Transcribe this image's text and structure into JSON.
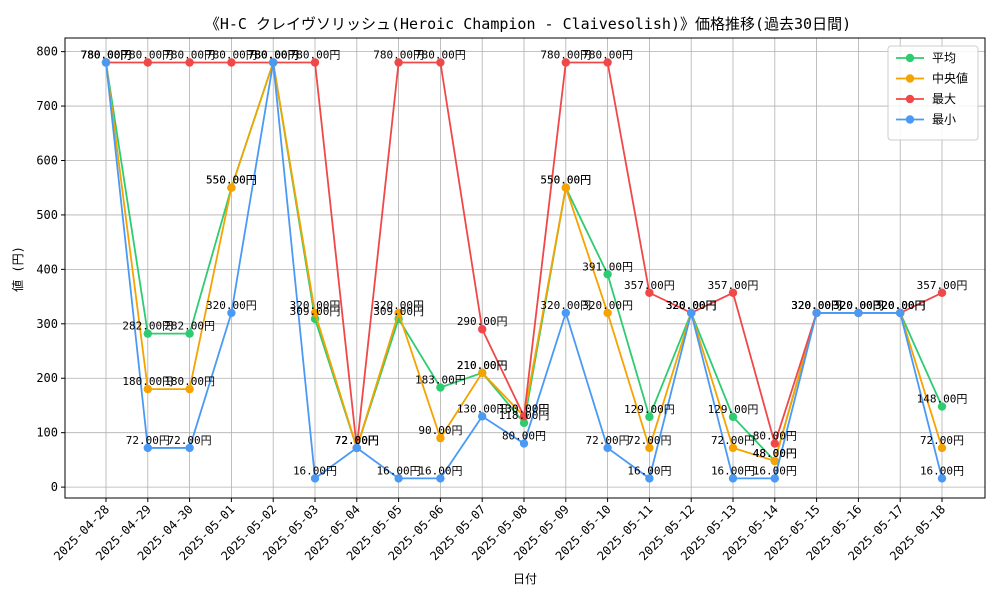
{
  "chart_data": {
    "type": "line",
    "title": "《H-C クレイヴソリッシュ(Heroic Champion - Claivesolish)》価格推移(過去30日間)",
    "xlabel": "日付",
    "ylabel": "値 (円)",
    "ylim": [
      -20,
      825
    ],
    "yticks": [
      0,
      100,
      200,
      300,
      400,
      500,
      600,
      700,
      800
    ],
    "grid": true,
    "legend_position": "top-right",
    "value_suffix": "円",
    "categories": [
      "2025-04-28",
      "2025-04-29",
      "2025-04-30",
      "2025-05-01",
      "2025-05-02",
      "2025-05-03",
      "2025-05-04",
      "2025-05-05",
      "2025-05-06",
      "2025-05-07",
      "2025-05-08",
      "2025-05-09",
      "2025-05-10",
      "2025-05-11",
      "2025-05-12",
      "2025-05-13",
      "2025-05-14",
      "2025-05-15",
      "2025-05-16",
      "2025-05-17",
      "2025-05-18"
    ],
    "series": [
      {
        "name": "平均",
        "color": "#2ecc71",
        "values": [
          780,
          282,
          282,
          550,
          780,
          309,
          72,
          309,
          183,
          210,
          118,
          550,
          391,
          129,
          320,
          129,
          48,
          320,
          320,
          320,
          148
        ]
      },
      {
        "name": "中央値",
        "color": "#f5a300",
        "values": [
          780,
          180,
          180,
          550,
          780,
          320,
          72,
          320,
          90,
          210,
          130,
          550,
          320,
          72,
          320,
          72,
          48,
          320,
          320,
          320,
          72
        ]
      },
      {
        "name": "最大",
        "color": "#f04848",
        "values": [
          780,
          780,
          780,
          780,
          780,
          780,
          72,
          780,
          780,
          290,
          130,
          780,
          780,
          357,
          320,
          357,
          80,
          320,
          320,
          320,
          357
        ]
      },
      {
        "name": "最小",
        "color": "#4a9af5",
        "values": [
          780,
          72,
          72,
          320,
          780,
          16,
          72,
          16,
          16,
          130,
          80,
          320,
          72,
          16,
          320,
          16,
          16,
          320,
          320,
          320,
          16
        ]
      }
    ]
  }
}
